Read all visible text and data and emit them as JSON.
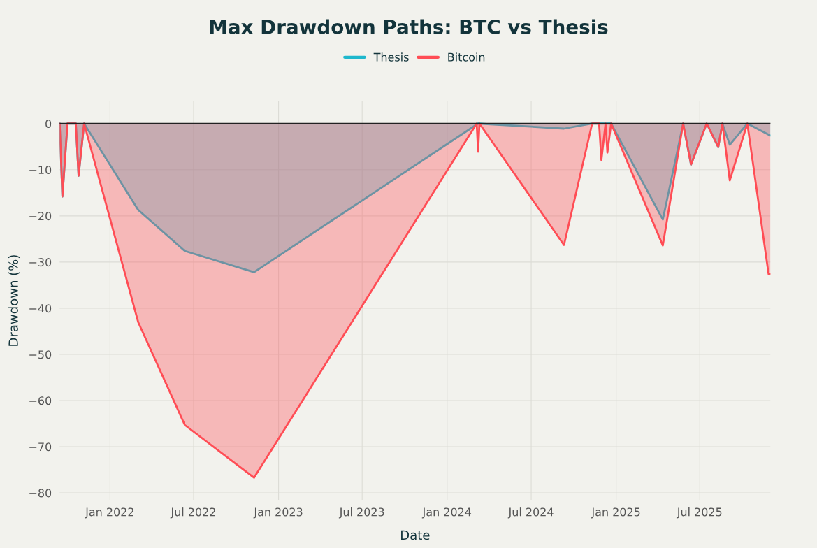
{
  "chart_data": {
    "type": "area",
    "title": "Max Drawdown Paths: BTC vs Thesis",
    "xlabel": "Date",
    "ylabel": "Drawdown (%)",
    "series": [
      {
        "name": "Thesis",
        "color": "#1fb8cd",
        "x": [
          "2021-09-14",
          "2021-09-20",
          "2021-10-01",
          "2021-10-19",
          "2021-10-25",
          "2021-11-06",
          "2022-03-03",
          "2022-06-12",
          "2022-11-09",
          "2024-03-08",
          "2024-09-10",
          "2024-11-10",
          "2024-12-21",
          "2025-04-12",
          "2025-05-26",
          "2025-06-12",
          "2025-07-16",
          "2025-08-10",
          "2025-08-19",
          "2025-09-04",
          "2025-10-12",
          "2025-12-01"
        ],
        "values": [
          0,
          -15.8,
          0,
          0,
          -11.3,
          0,
          -18.7,
          -27.6,
          -32.2,
          0,
          -1.1,
          0,
          0,
          -20.8,
          0,
          -8.9,
          0,
          -5.1,
          0,
          -4.6,
          0,
          -2.6
        ]
      },
      {
        "name": "Bitcoin",
        "color": "#ff4d55",
        "x": [
          "2021-09-14",
          "2021-09-20",
          "2021-10-01",
          "2021-10-19",
          "2021-10-25",
          "2021-11-06",
          "2022-03-03",
          "2022-06-12",
          "2022-11-09",
          "2024-03-05",
          "2024-03-08",
          "2024-03-11",
          "2024-09-10",
          "2024-11-10",
          "2024-11-25",
          "2024-11-30",
          "2024-12-09",
          "2024-12-13",
          "2024-12-21",
          "2025-04-12",
          "2025-05-26",
          "2025-06-12",
          "2025-07-16",
          "2025-08-10",
          "2025-08-19",
          "2025-09-04",
          "2025-10-12",
          "2025-11-27",
          "2025-12-01"
        ],
        "values": [
          0,
          -15.8,
          0,
          0,
          -11.3,
          0,
          -43,
          -65.3,
          -76.7,
          0,
          -6.1,
          0,
          -26.3,
          0,
          0,
          -7.9,
          0,
          -6.3,
          0,
          -26.4,
          0,
          -8.9,
          0,
          -5.1,
          0,
          -12.3,
          0,
          -32.6,
          -32.6
        ]
      }
    ],
    "xlim": [
      "2021-09-14",
      "2025-12-01"
    ],
    "xticks": [
      {
        "value": "2022-01-01",
        "label": "Jan 2022"
      },
      {
        "value": "2022-07-01",
        "label": "Jul 2022"
      },
      {
        "value": "2023-01-01",
        "label": "Jan 2023"
      },
      {
        "value": "2023-07-01",
        "label": "Jul 2023"
      },
      {
        "value": "2024-01-01",
        "label": "Jan 2024"
      },
      {
        "value": "2024-07-01",
        "label": "Jul 2024"
      },
      {
        "value": "2025-01-01",
        "label": "Jan 2025"
      },
      {
        "value": "2025-07-01",
        "label": "Jul 2025"
      }
    ],
    "ylim": [
      -81.5,
      4.8
    ],
    "yticks": [
      0,
      {
        "value": -10,
        "label": "−10"
      },
      {
        "value": -20,
        "label": "−20"
      },
      {
        "value": -30,
        "label": "−30"
      },
      {
        "value": -40,
        "label": "−40"
      },
      {
        "value": -50,
        "label": "−50"
      },
      {
        "value": -60,
        "label": "−60"
      },
      {
        "value": -70,
        "label": "−70"
      },
      {
        "value": -80,
        "label": "−80"
      }
    ],
    "ref_lines": [
      {
        "axis": "y",
        "value": 0,
        "color": "#222222"
      }
    ],
    "grid": true,
    "legend": "top"
  }
}
